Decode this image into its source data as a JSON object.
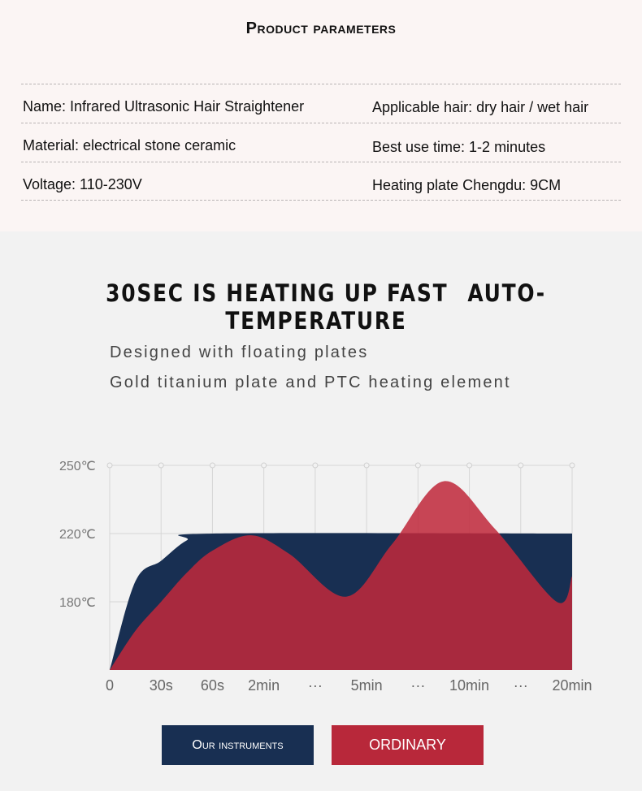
{
  "params": {
    "title": "Product parameters",
    "rows": [
      [
        "Name: Infrared Ultrasonic Hair Straightener",
        "Applicable hair: dry hair / wet hair"
      ],
      [
        "Material: electrical stone ceramic",
        "Best use time: 1-2 minutes"
      ],
      [
        "Voltage: 110-230V",
        "Heating plate Chengdu: 9CM"
      ]
    ]
  },
  "headline": [
    "30SEC IS HEATING UP FAST",
    "AUTO-TEMPERATURE"
  ],
  "subtitle": [
    "Designed with floating plates",
    "Gold titanium plate and PTC heating element"
  ],
  "chart_data": {
    "type": "area",
    "categories": [
      "0",
      "30s",
      "60s",
      "2min",
      "···",
      "5min",
      "···",
      "10min",
      "···",
      "20min"
    ],
    "y_ticks": [
      "250℃",
      "220℃",
      "180℃"
    ],
    "y_tick_values": [
      250,
      220,
      180
    ],
    "grid": true,
    "series": [
      {
        "name": "Our instruments",
        "color": "#182f52",
        "points": [
          [
            0.5,
            192
          ],
          [
            1,
            204
          ],
          [
            1.5,
            216
          ],
          [
            2,
            220
          ],
          [
            9,
            220
          ]
        ]
      },
      {
        "name": "ORDINARY",
        "color": "#c0293b",
        "points": [
          [
            0.5,
            163
          ],
          [
            1,
            180
          ],
          [
            1.5,
            197
          ],
          [
            2,
            210
          ],
          [
            2.75,
            219
          ],
          [
            3.5,
            208
          ],
          [
            4.6,
            183
          ],
          [
            5.5,
            214
          ],
          [
            6.5,
            243
          ],
          [
            7.5,
            222
          ],
          [
            8.7,
            180
          ],
          [
            9,
            195
          ]
        ]
      }
    ]
  },
  "legend": {
    "ours": "Our instruments",
    "ordinary": "ORDINARY"
  }
}
